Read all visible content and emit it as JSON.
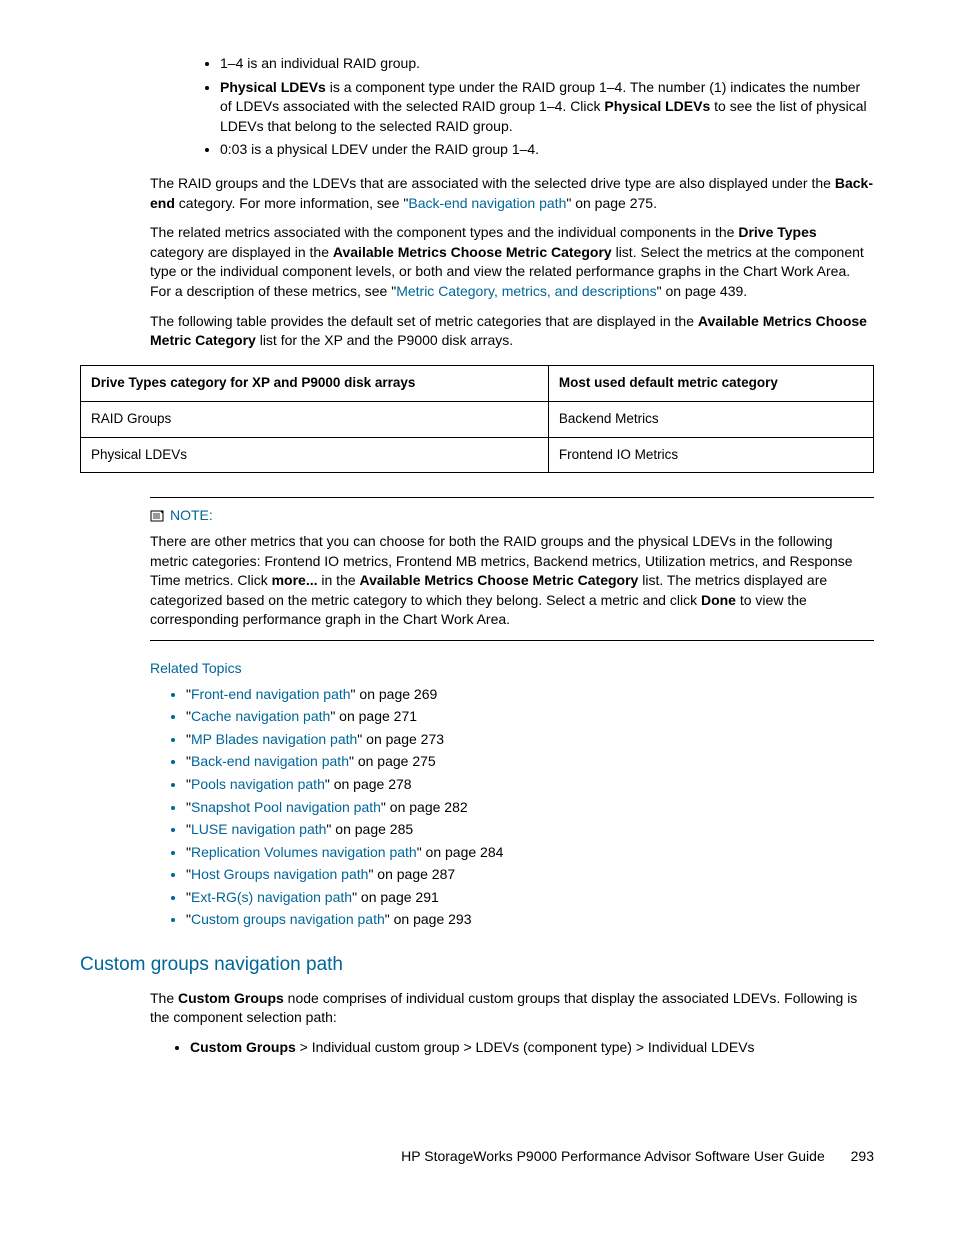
{
  "top_bullets": [
    {
      "pre": "",
      "bold1": "",
      "mid": "1–4 is an individual RAID group.",
      "bold2": "",
      "post": ""
    },
    {
      "pre": "",
      "bold1": "Physical LDEVs",
      "mid": " is a component type under the RAID group 1–4. The number (1) indicates the number of LDEVs associated with the selected RAID group 1–4. Click ",
      "bold2": "Physical LDEVs",
      "post": " to see the list of physical LDEVs that belong to the selected RAID group."
    },
    {
      "pre": "",
      "bold1": "",
      "mid": "0:03 is a physical LDEV under the RAID group 1–4.",
      "bold2": "",
      "post": ""
    }
  ],
  "para1": {
    "pre": "The RAID groups and the LDEVs that are associated with the selected drive type are also displayed under the ",
    "b1": "Back-end",
    "mid": " category. For more information, see \"",
    "link": "Back-end navigation path",
    "post": "\" on page 275."
  },
  "para2": {
    "pre": "The related metrics associated with the component types and the individual components in the ",
    "b1": "Drive Types",
    "mid1": " category are displayed in the ",
    "b2": "Available Metrics Choose Metric Category",
    "mid2": " list. Select the metrics at the component type or the individual component levels, or both and view the related performance graphs in the Chart Work Area. For a description of these metrics, see \"",
    "link": "Metric Category, metrics, and descriptions",
    "post": "\" on page 439."
  },
  "para3": {
    "pre": "The following table provides the default set of metric categories that are displayed in the ",
    "b1": "Available Metrics Choose Metric Category",
    "post": " list for the XP and the P9000 disk arrays."
  },
  "table": {
    "headers": [
      "Drive Types category for XP and P9000 disk arrays",
      "Most used default metric category"
    ],
    "rows": [
      [
        "RAID Groups",
        "Backend Metrics"
      ],
      [
        "Physical LDEVs",
        "Frontend IO Metrics"
      ]
    ]
  },
  "note": {
    "label": "NOTE:",
    "pre": "There are other metrics that you can choose for both the RAID groups and the physical LDEVs in the following metric categories: Frontend IO metrics, Frontend MB metrics, Backend metrics, Utilization metrics, and Response Time metrics. Click ",
    "b1": "more...",
    "mid1": " in the ",
    "b2": "Available Metrics Choose Metric Category",
    "mid2": " list. The metrics displayed are categorized based on the metric category to which they belong. Select a metric and click ",
    "b3": "Done",
    "post": " to view the corresponding performance graph in the Chart Work Area."
  },
  "related": {
    "heading": "Related Topics",
    "items": [
      {
        "link": "Front-end navigation path",
        "page": "269"
      },
      {
        "link": "Cache navigation path",
        "page": "271"
      },
      {
        "link": "MP Blades navigation path",
        "page": "273"
      },
      {
        "link": "Back-end navigation path",
        "page": "275"
      },
      {
        "link": "Pools navigation path",
        "page": "278"
      },
      {
        "link": "Snapshot Pool navigation path",
        "page": "282"
      },
      {
        "link": "LUSE navigation path",
        "page": "285"
      },
      {
        "link": "Replication Volumes navigation path",
        "page": "284"
      },
      {
        "link": "Host Groups navigation path",
        "page": "287"
      },
      {
        "link": "Ext-RG(s) navigation path",
        "page": "291"
      },
      {
        "link": "Custom groups navigation path",
        "page": "293"
      }
    ]
  },
  "section2": {
    "title": "Custom groups navigation path",
    "para_pre": "The ",
    "para_b": "Custom Groups",
    "para_post": " node comprises of individual custom groups that display the associated LDEVs. Following is the component selection path:",
    "bullet_b": "Custom Groups",
    "bullet_post": " > Individual custom group > LDEVs (component type) > Individual LDEVs"
  },
  "footer": {
    "title": "HP StorageWorks P9000 Performance Advisor Software User Guide",
    "page": "293"
  }
}
